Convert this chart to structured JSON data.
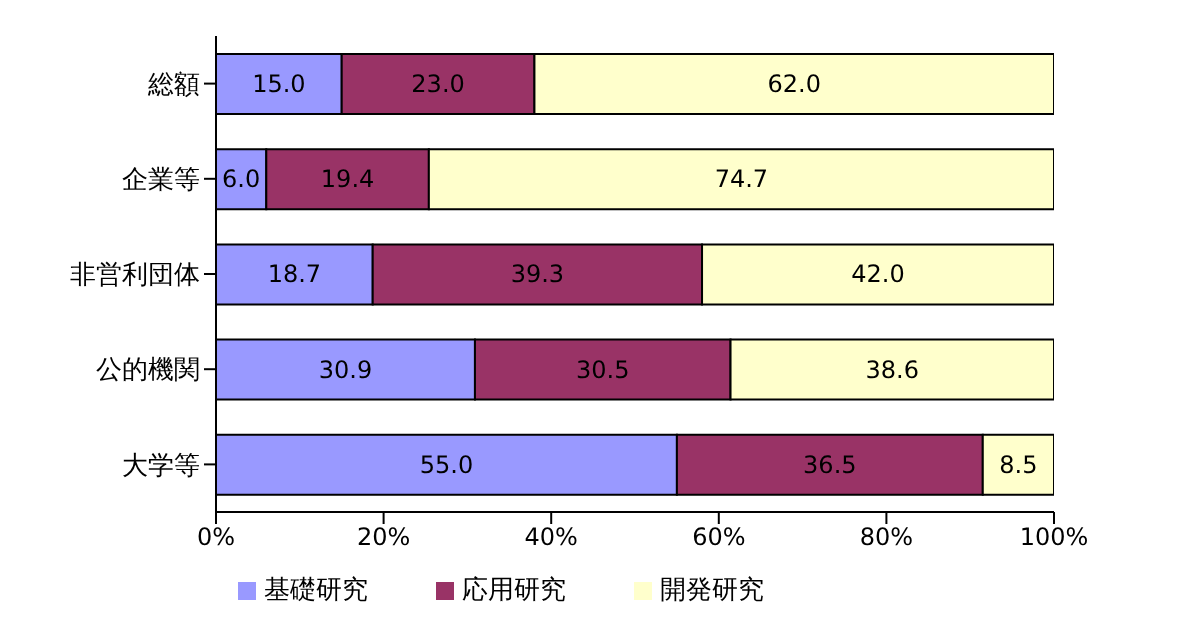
{
  "chart_data": {
    "type": "bar",
    "orientation": "horizontal",
    "stacked": true,
    "categories": [
      "総額",
      "企業等",
      "非営利団体",
      "公的機関",
      "大学等"
    ],
    "series": [
      {
        "name": "基礎研究",
        "color": "#9999ff",
        "values": [
          15.0,
          6.0,
          18.7,
          30.9,
          55.0
        ],
        "value_labels": [
          "15.0",
          "6.0",
          "18.7",
          "30.9",
          "55.0"
        ]
      },
      {
        "name": "応用研究",
        "color": "#993366",
        "values": [
          23.0,
          19.4,
          39.3,
          30.5,
          36.5
        ],
        "value_labels": [
          "23.0",
          "19.4",
          "39.3",
          "30.5",
          "36.5"
        ]
      },
      {
        "name": "開発研究",
        "color": "#ffffcc",
        "values": [
          62.0,
          74.7,
          42.0,
          38.6,
          8.5
        ],
        "value_labels": [
          "62.0",
          "74.7",
          "42.0",
          "38.6",
          "8.5"
        ]
      }
    ],
    "xlim": [
      0,
      100
    ],
    "xticks": [
      {
        "value": 0,
        "label": "0%"
      },
      {
        "value": 20,
        "label": "20%"
      },
      {
        "value": 40,
        "label": "40%"
      },
      {
        "value": 60,
        "label": "60%"
      },
      {
        "value": 80,
        "label": "80%"
      },
      {
        "value": 100,
        "label": "100%"
      }
    ],
    "legend": "bottom",
    "grid": false
  }
}
